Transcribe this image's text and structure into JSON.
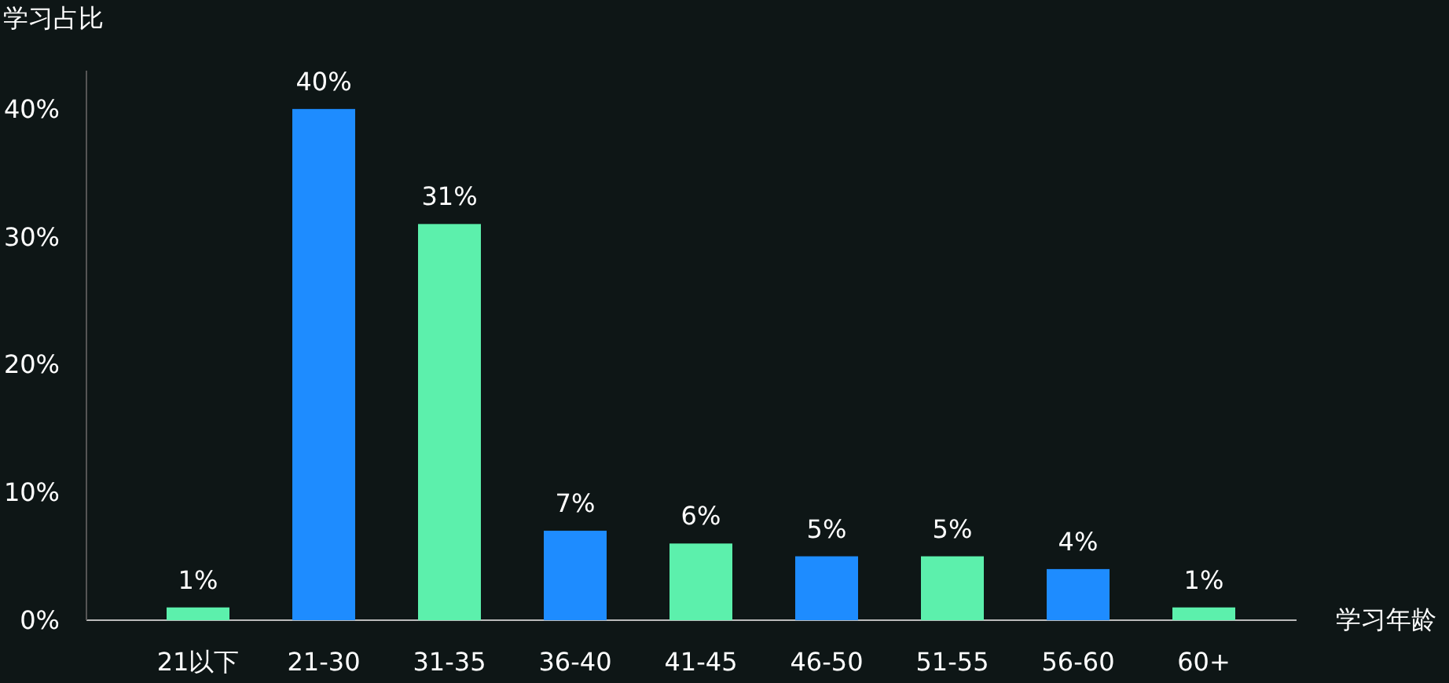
{
  "chart_data": {
    "type": "bar",
    "xlabel": "学习年龄",
    "ylabel": "学习占比",
    "categories": [
      "21以下",
      "21-30",
      "31-35",
      "36-40",
      "41-45",
      "46-50",
      "51-55",
      "56-60",
      "60+"
    ],
    "values": [
      1,
      40,
      31,
      7,
      6,
      5,
      5,
      4,
      1
    ],
    "colors": [
      "#5cf0ac",
      "#1e8cff",
      "#5cf0ac",
      "#1e8cff",
      "#5cf0ac",
      "#1e8cff",
      "#5cf0ac",
      "#1e8cff",
      "#5cf0ac"
    ],
    "value_labels": [
      "1%",
      "40%",
      "31%",
      "7%",
      "6%",
      "5%",
      "5%",
      "4%",
      "1%"
    ],
    "ylim": [
      0,
      43
    ],
    "yticks": [
      {
        "value": 0,
        "label": "0%"
      },
      {
        "value": 10,
        "label": "10%"
      },
      {
        "value": 20,
        "label": "20%"
      },
      {
        "value": 30,
        "label": "30%"
      },
      {
        "value": 40,
        "label": "40%"
      }
    ]
  }
}
